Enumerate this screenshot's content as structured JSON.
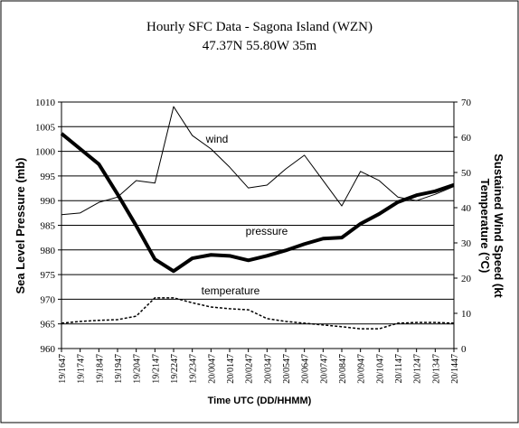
{
  "chart_data": {
    "type": "line",
    "title": "Hourly SFC Data - Sagona Island (WZN)",
    "subtitle": "47.37N 55.80W 35m",
    "xlabel": "Time UTC (DD/HHMM)",
    "ylabel": "Sea Level Pressure (mb)",
    "y2label": [
      "Sustained Wind Speed (kt",
      "Temperature (°C)"
    ],
    "categories": [
      "19/1647",
      "19/1747",
      "19/1847",
      "19/1947",
      "19/2047",
      "19/2147",
      "19/2247",
      "19/2347",
      "20/0047",
      "20/0147",
      "20/0247",
      "20/0347",
      "20/0547",
      "20/0647",
      "20/0747",
      "20/0847",
      "20/0947",
      "20/1047",
      "20/1147",
      "20/1247",
      "20/1347",
      "20/1447"
    ],
    "ylim": [
      960,
      1010
    ],
    "yticks": [
      960,
      965,
      970,
      975,
      980,
      985,
      990,
      995,
      1000,
      1005,
      1010
    ],
    "y2lim": [
      0,
      70
    ],
    "y2ticks": [
      0,
      10,
      20,
      30,
      40,
      50,
      60,
      70
    ],
    "grid": true,
    "series": [
      {
        "name": "pressure",
        "color": "#000000",
        "width": 4,
        "dash": "none",
        "values": [
          1003.6,
          1000.5,
          997.4,
          991.3,
          984.9,
          978.1,
          975.7,
          978.3,
          979.0,
          978.8,
          977.9,
          978.8,
          979.9,
          981.2,
          982.3,
          982.5,
          985.3,
          987.3,
          989.7,
          991.1,
          991.9,
          993.2
        ]
      },
      {
        "name": "wind",
        "color": "#000000",
        "width": 1,
        "dash": "none",
        "axis": "y2",
        "values": [
          38,
          38.5,
          41.5,
          43,
          47.7,
          47,
          68.7,
          60.5,
          56.7,
          51.5,
          45.6,
          46.4,
          51,
          54.9,
          47.7,
          40.5,
          50.3,
          47.7,
          43,
          42,
          43.8,
          46
        ]
      },
      {
        "name": "temperature",
        "color": "#000000",
        "width": 1.5,
        "dash": "3,2",
        "axis": "y2",
        "values": [
          7.2,
          7.7,
          8,
          8.2,
          9.2,
          14.4,
          14.4,
          13,
          11.8,
          11.3,
          11,
          8.5,
          7.7,
          7.2,
          6.7,
          6.2,
          5.6,
          5.6,
          7.2,
          7.4,
          7.4,
          7.2
        ]
      }
    ]
  }
}
